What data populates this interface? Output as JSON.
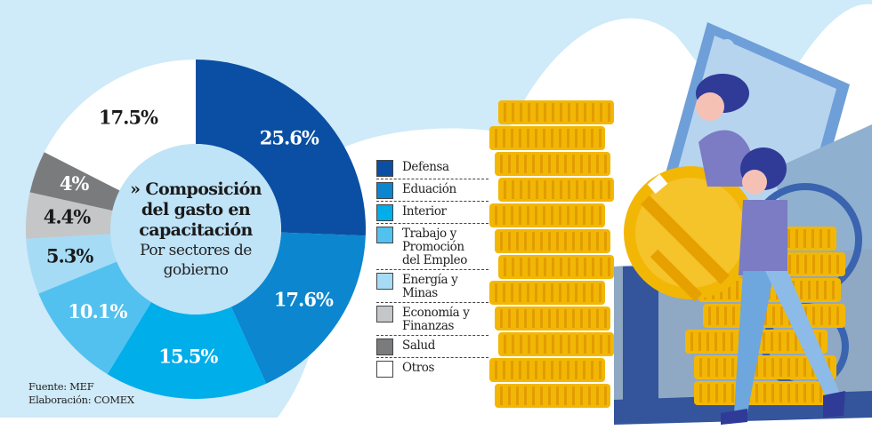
{
  "colors": {
    "background": "#cfeaf8",
    "inner_circle": "#bfe3f7",
    "wave": "#ffffff"
  },
  "center": {
    "title_prefix": "»",
    "title_lines": [
      "Composición",
      "del gasto en",
      "capacitación"
    ],
    "subtitle_lines": [
      "Por sectores de",
      "gobierno"
    ]
  },
  "source": {
    "line1": "Fuente: MEF",
    "line2": "Elaboración: COMEX"
  },
  "legend": {
    "items": [
      {
        "label_lines": [
          "Defensa"
        ],
        "color": "#0a4fa3"
      },
      {
        "label_lines": [
          "Eduación"
        ],
        "color": "#0b86cf"
      },
      {
        "label_lines": [
          "Interior"
        ],
        "color": "#00aeea"
      },
      {
        "label_lines": [
          "Trabajo y",
          "Promoción",
          "del Empleo"
        ],
        "color": "#52c1ef"
      },
      {
        "label_lines": [
          "Energía y",
          "Minas"
        ],
        "color": "#a6dbf5"
      },
      {
        "label_lines": [
          "Economía y",
          "Finanzas"
        ],
        "color": "#c4c6c8"
      },
      {
        "label_lines": [
          "Salud"
        ],
        "color": "#7a7b7d"
      },
      {
        "label_lines": [
          "Otros"
        ],
        "color": "#ffffff"
      }
    ]
  },
  "chart_data": {
    "type": "pie",
    "variant": "donut",
    "title": "Composición del gasto en capacitación",
    "subtitle": "Por sectores de gobierno",
    "start": "12 o'clock",
    "direction": "clockwise",
    "legend_position": "right",
    "categories": [
      "Defensa",
      "Eduación",
      "Interior",
      "Trabajo y Promoción del Empleo",
      "Energía y Minas",
      "Economía y Finanzas",
      "Salud",
      "Otros"
    ],
    "values": [
      25.6,
      17.6,
      15.5,
      10.1,
      5.3,
      4.4,
      4.0,
      17.5
    ],
    "labels": [
      "25.6%",
      "17.6%",
      "15.5%",
      "10.1%",
      "5.3%",
      "4.4%",
      "4%",
      "17.5%"
    ],
    "colors": [
      "#0a4fa3",
      "#0b86cf",
      "#00aeea",
      "#52c1ef",
      "#a6dbf5",
      "#c4c6c8",
      "#7a7b7d",
      "#ffffff"
    ],
    "label_colors": [
      "#ffffff",
      "#ffffff",
      "#ffffff",
      "#ffffff",
      "#1a1a1a",
      "#1a1a1a",
      "#ffffff",
      "#1a1a1a"
    ],
    "unit": "%"
  }
}
